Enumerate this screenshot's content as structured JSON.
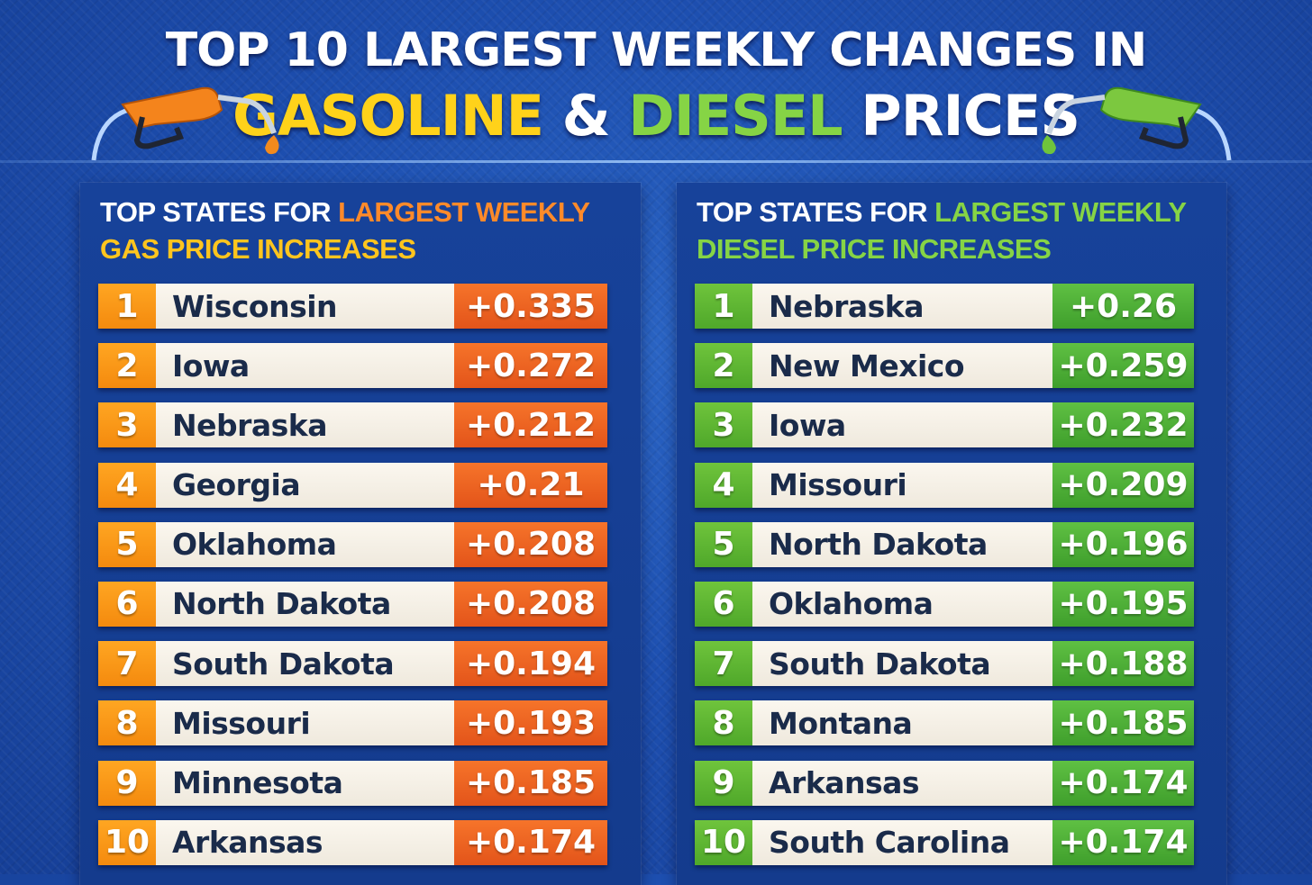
{
  "header": {
    "line1": "TOP 10 LARGEST WEEKLY CHANGES IN",
    "word_gasoline": "GASOLINE",
    "amp": "&",
    "word_diesel": "DIESEL",
    "word_prices": "PRICES"
  },
  "gas_panel": {
    "title_prefix": "TOP STATES FOR",
    "title_highlight1": "LARGEST WEEKLY",
    "title_highlight2": "GAS PRICE INCREASES",
    "rows": [
      {
        "rank": "1",
        "state": "Wisconsin",
        "change": "+0.335"
      },
      {
        "rank": "2",
        "state": "Iowa",
        "change": "+0.272"
      },
      {
        "rank": "3",
        "state": "Nebraska",
        "change": "+0.212"
      },
      {
        "rank": "4",
        "state": "Georgia",
        "change": "+0.21"
      },
      {
        "rank": "5",
        "state": "Oklahoma",
        "change": "+0.208"
      },
      {
        "rank": "6",
        "state": "North Dakota",
        "change": "+0.208"
      },
      {
        "rank": "7",
        "state": "South Dakota",
        "change": "+0.194"
      },
      {
        "rank": "8",
        "state": "Missouri",
        "change": "+0.193"
      },
      {
        "rank": "9",
        "state": "Minnesota",
        "change": "+0.185"
      },
      {
        "rank": "10",
        "state": "Arkansas",
        "change": "+0.174"
      }
    ]
  },
  "diesel_panel": {
    "title_prefix": "TOP STATES FOR",
    "title_highlight1": "LARGEST WEEKLY",
    "title_highlight2": "DIESEL PRICE INCREASES",
    "rows": [
      {
        "rank": "1",
        "state": "Nebraska",
        "change": "+0.26"
      },
      {
        "rank": "2",
        "state": "New Mexico",
        "change": "+0.259"
      },
      {
        "rank": "3",
        "state": "Iowa",
        "change": "+0.232"
      },
      {
        "rank": "4",
        "state": "Missouri",
        "change": "+0.209"
      },
      {
        "rank": "5",
        "state": "North Dakota",
        "change": "+0.196"
      },
      {
        "rank": "6",
        "state": "Oklahoma",
        "change": "+0.195"
      },
      {
        "rank": "7",
        "state": "South Dakota",
        "change": "+0.188"
      },
      {
        "rank": "8",
        "state": "Montana",
        "change": "+0.185"
      },
      {
        "rank": "9",
        "state": "Arkansas",
        "change": "+0.174"
      },
      {
        "rank": "10",
        "state": "South Carolina",
        "change": "+0.174"
      }
    ]
  },
  "colors": {
    "background": "#1d4fb0",
    "gas_accent": "#f48a0e",
    "gas_value": "#e3541a",
    "diesel_accent": "#4fa82a",
    "title_yellow": "#ffd21a",
    "title_green": "#86d445"
  },
  "icons": {
    "left": "orange-fuel-nozzle-icon",
    "right": "green-fuel-nozzle-icon"
  }
}
